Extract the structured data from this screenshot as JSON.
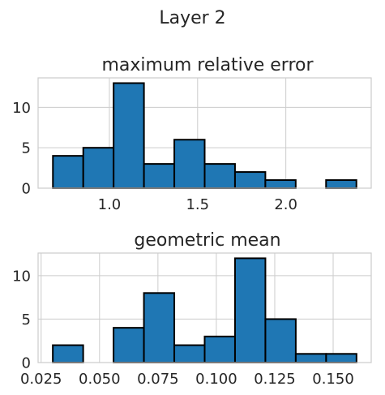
{
  "figure": {
    "suptitle": "Layer 2"
  },
  "chart_data": [
    {
      "type": "bar",
      "histogram": true,
      "title": "maximum relative error",
      "xlabel": "",
      "ylabel": "",
      "bin_edges": [
        0.68,
        0.852,
        1.024,
        1.196,
        1.368,
        1.54,
        1.712,
        1.884,
        2.056,
        2.228,
        2.4
      ],
      "values": [
        4,
        5,
        13,
        3,
        6,
        3,
        2,
        1,
        0,
        1
      ],
      "xlim": [
        0.596,
        2.484
      ],
      "ylim": [
        0,
        13.65
      ],
      "xticks": [
        1.0,
        1.5,
        2.0
      ],
      "xtick_labels": [
        "1.0",
        "1.5",
        "2.0"
      ],
      "yticks": [
        0,
        5,
        10
      ],
      "ytick_labels": [
        "0",
        "5",
        "10"
      ],
      "bar_color": "#1f77b4",
      "edge_color": "#000000",
      "grid": true
    },
    {
      "type": "bar",
      "histogram": true,
      "title": "geometric mean",
      "xlabel": "",
      "ylabel": "",
      "bin_edges": [
        0.03,
        0.043,
        0.056,
        0.069,
        0.082,
        0.095,
        0.108,
        0.121,
        0.134,
        0.147,
        0.16
      ],
      "values": [
        2,
        0,
        4,
        8,
        2,
        3,
        12,
        5,
        1,
        1
      ],
      "xlim": [
        0.0237,
        0.1663
      ],
      "ylim": [
        0,
        12.6
      ],
      "xticks": [
        0.025,
        0.05,
        0.075,
        0.1,
        0.125,
        0.15
      ],
      "xtick_labels": [
        "0.025",
        "0.050",
        "0.075",
        "0.100",
        "0.125",
        "0.150"
      ],
      "yticks": [
        0,
        5,
        10
      ],
      "ytick_labels": [
        "0",
        "5",
        "10"
      ],
      "bar_color": "#1f77b4",
      "edge_color": "#000000",
      "grid": true
    }
  ]
}
